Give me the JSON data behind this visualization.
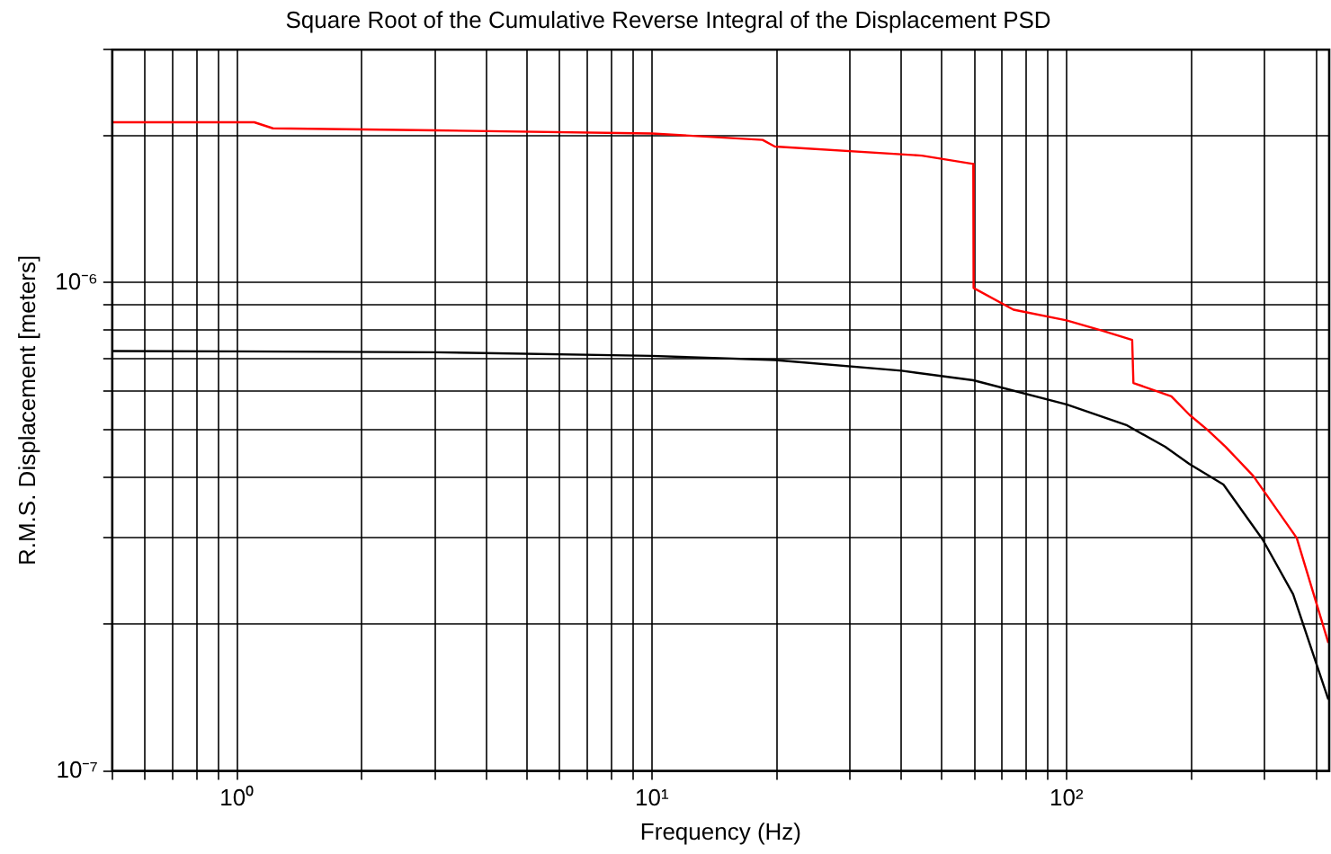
{
  "chart_data": {
    "type": "line",
    "title": "Square Root of the Cumulative Reverse Integral of the Displacement PSD",
    "xlabel": "Frequency (Hz)",
    "ylabel": "R.M.S. Displacement [meters]",
    "log": "xy",
    "grid": true,
    "legend": false,
    "marker": "none",
    "xlim": [
      0.5,
      430
    ],
    "ylim": [
      1e-07,
      3e-06
    ],
    "xticks": [
      {
        "value": 0.5,
        "label": null
      },
      {
        "value": 0.6,
        "label": null
      },
      {
        "value": 0.7,
        "label": null
      },
      {
        "value": 0.8,
        "label": null
      },
      {
        "value": 0.9,
        "label": null
      },
      {
        "value": 1,
        "label": "10⁰"
      },
      {
        "value": 2,
        "label": null
      },
      {
        "value": 3,
        "label": null
      },
      {
        "value": 4,
        "label": null
      },
      {
        "value": 5,
        "label": null
      },
      {
        "value": 6,
        "label": null
      },
      {
        "value": 7,
        "label": null
      },
      {
        "value": 8,
        "label": null
      },
      {
        "value": 9,
        "label": null
      },
      {
        "value": 10,
        "label": "10¹"
      },
      {
        "value": 20,
        "label": null
      },
      {
        "value": 30,
        "label": null
      },
      {
        "value": 40,
        "label": null
      },
      {
        "value": 50,
        "label": null
      },
      {
        "value": 60,
        "label": null
      },
      {
        "value": 70,
        "label": null
      },
      {
        "value": 80,
        "label": null
      },
      {
        "value": 90,
        "label": null
      },
      {
        "value": 100,
        "label": "10²"
      },
      {
        "value": 200,
        "label": null
      },
      {
        "value": 300,
        "label": null
      },
      {
        "value": 400,
        "label": null
      }
    ],
    "yticks": [
      {
        "value": 1e-07,
        "label": "10⁻⁷"
      },
      {
        "value": 2e-07,
        "label": null
      },
      {
        "value": 3e-07,
        "label": null
      },
      {
        "value": 4e-07,
        "label": null
      },
      {
        "value": 5e-07,
        "label": null
      },
      {
        "value": 6e-07,
        "label": null
      },
      {
        "value": 7e-07,
        "label": null
      },
      {
        "value": 8e-07,
        "label": null
      },
      {
        "value": 9e-07,
        "label": null
      },
      {
        "value": 1e-06,
        "label": "10⁻⁶"
      },
      {
        "value": 2e-06,
        "label": null
      },
      {
        "value": 3e-06,
        "label": null
      }
    ],
    "series": [
      {
        "color": "#ff0000",
        "x": [
          0.5,
          1.1,
          1.22,
          3,
          10,
          18.5,
          19.8,
          44.8,
          59.6,
          59.7,
          74.5,
          100,
          122,
          144,
          145,
          179,
          198,
          219,
          242,
          282,
          359,
          428
        ],
        "values": [
          2.13e-06,
          2.13e-06,
          2.07e-06,
          2.05e-06,
          2.02e-06,
          1.96e-06,
          1.9e-06,
          1.82e-06,
          1.75e-06,
          9.75e-07,
          8.8e-07,
          8.37e-07,
          7.97e-07,
          7.63e-07,
          6.23e-07,
          5.85e-07,
          5.36e-07,
          4.99e-07,
          4.61e-07,
          4.02e-07,
          3e-07,
          1.83e-07
        ]
      },
      {
        "color": "#000000",
        "x": [
          0.5,
          1,
          3,
          10,
          19.8,
          40,
          59.6,
          100,
          140,
          173,
          198,
          239,
          297,
          352,
          428
        ],
        "values": [
          7.24e-07,
          7.23e-07,
          7.2e-07,
          7.08e-07,
          6.94e-07,
          6.6e-07,
          6.31e-07,
          5.63e-07,
          5.1e-07,
          4.61e-07,
          4.25e-07,
          3.86e-07,
          2.98e-07,
          2.3e-07,
          1.4e-07
        ]
      }
    ]
  }
}
